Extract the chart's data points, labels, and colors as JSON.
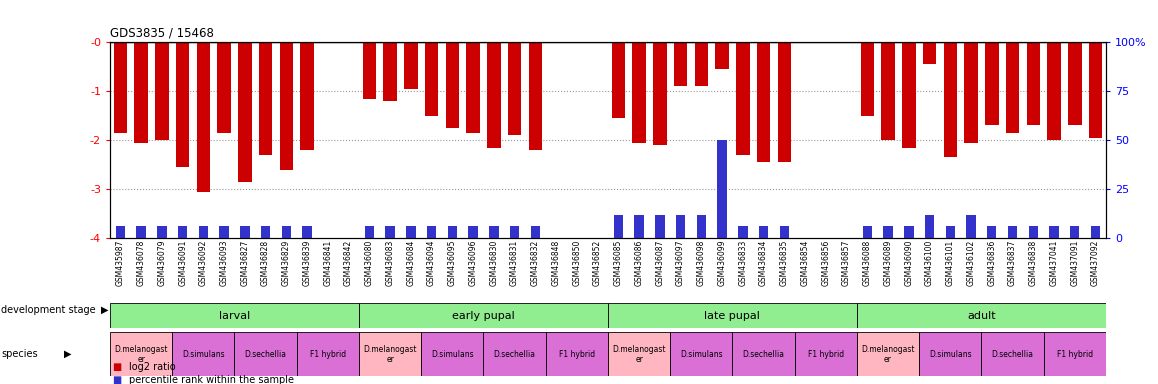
{
  "title": "GDS3835 / 15468",
  "samples": [
    "GSM435987",
    "GSM436078",
    "GSM436079",
    "GSM436091",
    "GSM436092",
    "GSM436093",
    "GSM436827",
    "GSM436828",
    "GSM436829",
    "GSM436839",
    "GSM436841",
    "GSM436842",
    "GSM436080",
    "GSM436083",
    "GSM436084",
    "GSM436094",
    "GSM436095",
    "GSM436096",
    "GSM436830",
    "GSM436831",
    "GSM436832",
    "GSM436848",
    "GSM436850",
    "GSM436852",
    "GSM436085",
    "GSM436086",
    "GSM436087",
    "GSM436097",
    "GSM436098",
    "GSM436099",
    "GSM436833",
    "GSM436834",
    "GSM436835",
    "GSM436854",
    "GSM436856",
    "GSM436857",
    "GSM436088",
    "GSM436089",
    "GSM436090",
    "GSM436100",
    "GSM436101",
    "GSM436102",
    "GSM436836",
    "GSM436837",
    "GSM436838",
    "GSM437041",
    "GSM437091",
    "GSM437092"
  ],
  "log2_values": [
    -1.85,
    -2.05,
    -2.0,
    -2.55,
    -3.05,
    -1.85,
    -2.85,
    -2.3,
    -2.6,
    -2.2,
    0.0,
    0.0,
    -1.15,
    -1.2,
    -0.95,
    -1.5,
    -1.75,
    -1.85,
    -2.15,
    -1.9,
    -2.2,
    0.0,
    0.0,
    0.0,
    -1.55,
    -2.05,
    -2.1,
    -0.9,
    -0.9,
    -0.55,
    -2.3,
    -2.45,
    -2.45,
    0.0,
    0.0,
    0.0,
    -1.5,
    -2.0,
    -2.15,
    -0.45,
    -2.35,
    -2.05,
    -1.7,
    -1.85,
    -1.7,
    -2.0,
    -1.7,
    -1.95
  ],
  "percentile_values": [
    6,
    6,
    6,
    6,
    6,
    6,
    6,
    6,
    6,
    6,
    0,
    0,
    6,
    6,
    6,
    6,
    6,
    6,
    6,
    6,
    6,
    0,
    0,
    0,
    12,
    12,
    12,
    12,
    12,
    50,
    6,
    6,
    6,
    0,
    0,
    0,
    6,
    6,
    6,
    12,
    6,
    12,
    6,
    6,
    6,
    6,
    6,
    6
  ],
  "development_stages": [
    {
      "label": "larval",
      "start": 0,
      "end": 12,
      "color": "#90EE90"
    },
    {
      "label": "early pupal",
      "start": 12,
      "end": 24,
      "color": "#90EE90"
    },
    {
      "label": "late pupal",
      "start": 24,
      "end": 36,
      "color": "#90EE90"
    },
    {
      "label": "adult",
      "start": 36,
      "end": 48,
      "color": "#90EE90"
    }
  ],
  "species_groups": [
    {
      "label": "D.melanogast\ner",
      "start": 0,
      "end": 3,
      "color": "#FFB6C1"
    },
    {
      "label": "D.simulans",
      "start": 3,
      "end": 6,
      "color": "#DA70D6"
    },
    {
      "label": "D.sechellia",
      "start": 6,
      "end": 9,
      "color": "#DA70D6"
    },
    {
      "label": "F1 hybrid",
      "start": 9,
      "end": 12,
      "color": "#DA70D6"
    },
    {
      "label": "D.melanogast\ner",
      "start": 12,
      "end": 15,
      "color": "#FFB6C1"
    },
    {
      "label": "D.simulans",
      "start": 15,
      "end": 18,
      "color": "#DA70D6"
    },
    {
      "label": "D.sechellia",
      "start": 18,
      "end": 21,
      "color": "#DA70D6"
    },
    {
      "label": "F1 hybrid",
      "start": 21,
      "end": 24,
      "color": "#DA70D6"
    },
    {
      "label": "D.melanogast\ner",
      "start": 24,
      "end": 27,
      "color": "#FFB6C1"
    },
    {
      "label": "D.simulans",
      "start": 27,
      "end": 30,
      "color": "#DA70D6"
    },
    {
      "label": "D.sechellia",
      "start": 30,
      "end": 33,
      "color": "#DA70D6"
    },
    {
      "label": "F1 hybrid",
      "start": 33,
      "end": 36,
      "color": "#DA70D6"
    },
    {
      "label": "D.melanogast\ner",
      "start": 36,
      "end": 39,
      "color": "#FFB6C1"
    },
    {
      "label": "D.simulans",
      "start": 39,
      "end": 42,
      "color": "#DA70D6"
    },
    {
      "label": "D.sechellia",
      "start": 42,
      "end": 45,
      "color": "#DA70D6"
    },
    {
      "label": "F1 hybrid",
      "start": 45,
      "end": 48,
      "color": "#DA70D6"
    }
  ],
  "ylim_left": [
    -4,
    0
  ],
  "ylim_right": [
    0,
    100
  ],
  "bar_color": "#CC0000",
  "percentile_color": "#3333CC",
  "grid_color": "#888888",
  "background_color": "#FFFFFF"
}
